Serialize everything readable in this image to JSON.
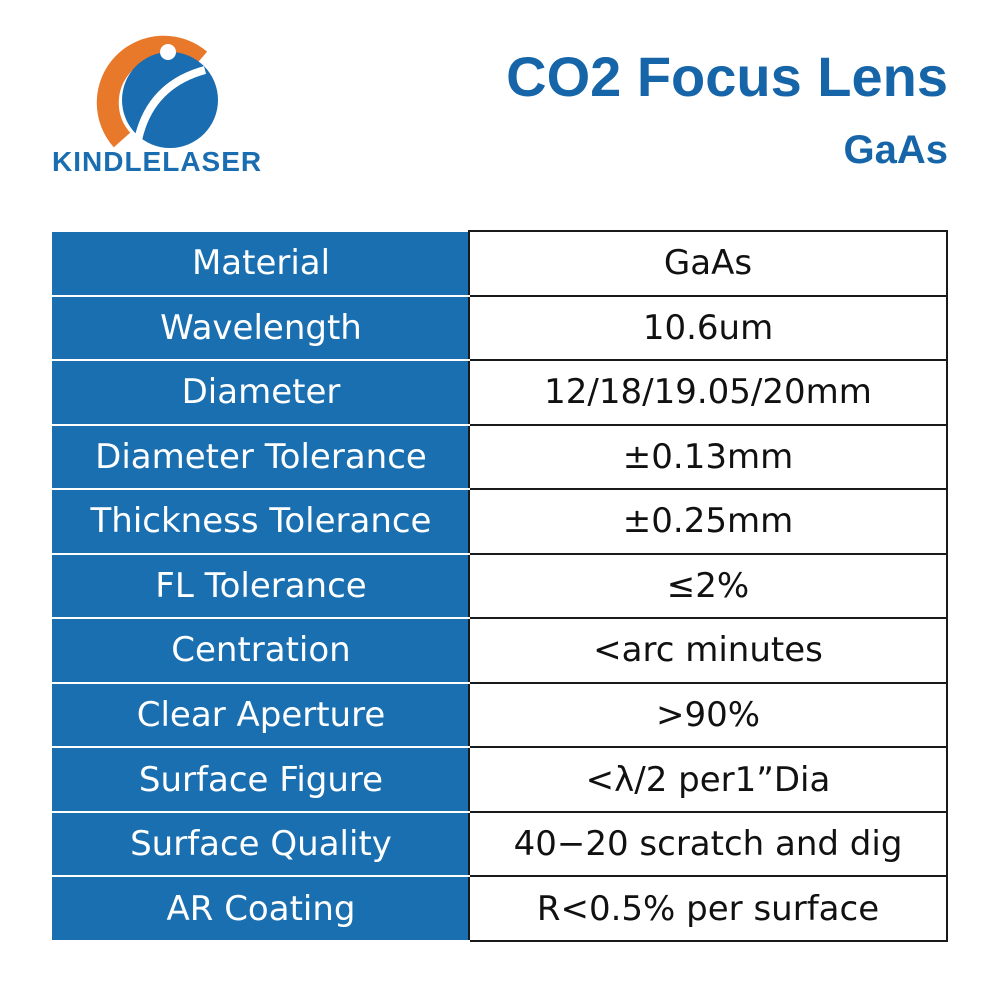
{
  "header": {
    "logo": "KINDLELASER",
    "title": "CO2 Focus Lens",
    "subtitle": "GaAs"
  },
  "table": {
    "rows": [
      [
        "Material",
        "GaAs"
      ],
      [
        "Wavelength",
        "10.6um"
      ],
      [
        "Diameter",
        "12/18/19.05/20mm"
      ],
      [
        "Diameter Tolerance",
        "±0.13mm"
      ],
      [
        "Thickness Tolerance",
        "±0.25mm"
      ],
      [
        "FL Tolerance",
        "≤2%"
      ],
      [
        "Centration",
        "<arc minutes"
      ],
      [
        "Clear Aperture",
        ">90%"
      ],
      [
        "Surface Figure",
        "<λ/2 per1”Dia"
      ],
      [
        "Surface Quality",
        "40−20 scratch and dig"
      ],
      [
        "AR Coating",
        "R<0.5% per surface"
      ]
    ]
  }
}
